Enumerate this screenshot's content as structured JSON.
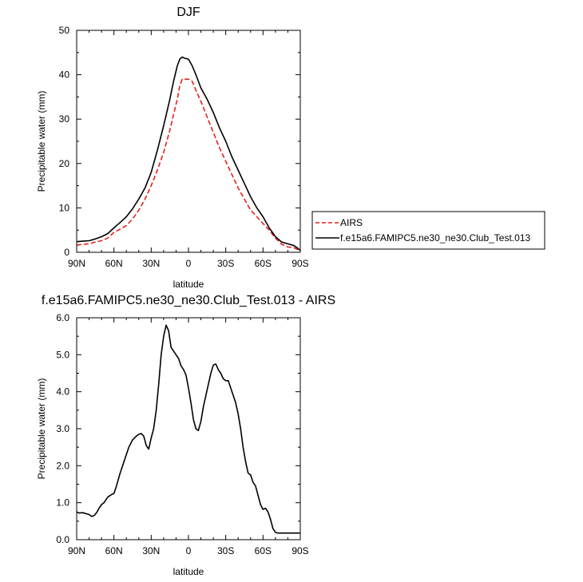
{
  "chart_data": [
    {
      "type": "line",
      "title": "DJF",
      "xlabel": "latitude",
      "ylabel": "Precipitable water (mm)",
      "xlim": [
        -90,
        90
      ],
      "ylim": [
        0,
        50
      ],
      "x_ticks": [
        {
          "value": -90,
          "label": "90N"
        },
        {
          "value": -60,
          "label": "60N"
        },
        {
          "value": -30,
          "label": "30N"
        },
        {
          "value": 0,
          "label": "0"
        },
        {
          "value": 30,
          "label": "30S"
        },
        {
          "value": 60,
          "label": "60S"
        },
        {
          "value": 90,
          "label": "90S"
        }
      ],
      "y_ticks": [
        {
          "value": 0,
          "label": "0"
        },
        {
          "value": 10,
          "label": "10"
        },
        {
          "value": 20,
          "label": "20"
        },
        {
          "value": 30,
          "label": "30"
        },
        {
          "value": 40,
          "label": "40"
        },
        {
          "value": 50,
          "label": "50"
        }
      ],
      "grid": false,
      "legend_position": "right",
      "series": [
        {
          "name": "AIRS",
          "color": "#e8201c",
          "dash": "dashed",
          "x": [
            -90,
            -85,
            -80,
            -75,
            -70,
            -65,
            -60,
            -55,
            -50,
            -45,
            -40,
            -35,
            -30,
            -25,
            -20,
            -15,
            -12,
            -9,
            -7,
            -5,
            -3,
            0,
            3,
            6,
            10,
            15,
            20,
            25,
            30,
            35,
            40,
            45,
            50,
            55,
            60,
            65,
            70,
            75,
            80,
            85,
            88,
            90
          ],
          "y": [
            1.6,
            1.8,
            1.9,
            2.3,
            2.6,
            3.2,
            4.5,
            5.2,
            6.0,
            7.5,
            9.5,
            12.0,
            15.0,
            18.5,
            22.5,
            27.5,
            31.0,
            34.5,
            37.5,
            39.0,
            39.0,
            39.0,
            38.5,
            36.5,
            34.0,
            30.5,
            27.0,
            23.5,
            20.5,
            17.5,
            14.5,
            12.0,
            9.5,
            8.0,
            6.5,
            5.0,
            3.2,
            1.8,
            1.2,
            1.0,
            0.6,
            0.4
          ]
        },
        {
          "name": "f.e15a6.FAMIPC5.ne30_ne30.Club_Test.013",
          "color": "#000000",
          "dash": "solid",
          "x": [
            -90,
            -85,
            -80,
            -75,
            -70,
            -65,
            -60,
            -55,
            -50,
            -45,
            -40,
            -35,
            -30,
            -25,
            -20,
            -15,
            -12,
            -9,
            -7,
            -5,
            -3,
            0,
            3,
            6,
            10,
            15,
            20,
            25,
            30,
            35,
            40,
            45,
            50,
            55,
            60,
            65,
            70,
            75,
            80,
            85,
            88,
            90
          ],
          "y": [
            2.4,
            2.5,
            2.6,
            3.0,
            3.5,
            4.2,
            5.5,
            6.7,
            8.0,
            9.8,
            12.0,
            14.5,
            18.0,
            23.0,
            28.5,
            34.5,
            38.5,
            42.0,
            43.5,
            44.0,
            43.7,
            43.5,
            42.0,
            40.0,
            37.0,
            34.5,
            31.5,
            28.0,
            25.0,
            21.5,
            18.5,
            15.5,
            12.5,
            10.0,
            8.0,
            5.5,
            3.5,
            2.3,
            1.9,
            1.5,
            0.9,
            0.4
          ]
        }
      ]
    },
    {
      "type": "line",
      "title": "f.e15a6.FAMIPC5.ne30_ne30.Club_Test.013 - AIRS",
      "xlabel": "latitude",
      "ylabel": "Precipitable water (mm)",
      "xlim": [
        -90,
        90
      ],
      "ylim": [
        0,
        6
      ],
      "x_ticks": [
        {
          "value": -90,
          "label": "90N"
        },
        {
          "value": -60,
          "label": "60N"
        },
        {
          "value": -30,
          "label": "30N"
        },
        {
          "value": 0,
          "label": "0"
        },
        {
          "value": 30,
          "label": "30S"
        },
        {
          "value": 60,
          "label": "60S"
        },
        {
          "value": 90,
          "label": "90S"
        }
      ],
      "y_ticks": [
        {
          "value": 0,
          "label": "0.0"
        },
        {
          "value": 1,
          "label": "1.0"
        },
        {
          "value": 2,
          "label": "2.0"
        },
        {
          "value": 3,
          "label": "3.0"
        },
        {
          "value": 4,
          "label": "4.0"
        },
        {
          "value": 5,
          "label": "5.0"
        },
        {
          "value": 6,
          "label": "6.0"
        }
      ],
      "grid": false,
      "series": [
        {
          "color": "#000000",
          "dash": "solid",
          "x": [
            -90,
            -88,
            -85,
            -82,
            -80,
            -78,
            -76,
            -74,
            -72,
            -70,
            -68,
            -65,
            -62,
            -60,
            -58,
            -55,
            -52,
            -50,
            -48,
            -45,
            -42,
            -40,
            -38,
            -36,
            -34,
            -32,
            -30,
            -28,
            -26,
            -24,
            -22,
            -20,
            -18,
            -16,
            -14,
            -12,
            -10,
            -8,
            -6,
            -4,
            -2,
            0,
            2,
            4,
            6,
            8,
            10,
            12,
            14,
            16,
            18,
            20,
            22,
            24,
            26,
            28,
            30,
            32,
            34,
            36,
            38,
            40,
            42,
            44,
            46,
            48,
            50,
            52,
            54,
            56,
            58,
            60,
            62,
            64,
            66,
            68,
            70,
            72,
            74,
            76,
            78,
            80,
            82,
            84,
            86,
            88,
            90
          ],
          "y": [
            0.75,
            0.72,
            0.73,
            0.7,
            0.68,
            0.63,
            0.65,
            0.73,
            0.85,
            0.95,
            1.0,
            1.15,
            1.22,
            1.25,
            1.45,
            1.8,
            2.1,
            2.3,
            2.5,
            2.7,
            2.8,
            2.85,
            2.87,
            2.8,
            2.55,
            2.45,
            2.75,
            3.0,
            3.5,
            4.2,
            5.0,
            5.5,
            5.8,
            5.65,
            5.2,
            5.1,
            5.0,
            4.9,
            4.7,
            4.6,
            4.45,
            4.1,
            3.7,
            3.25,
            3.0,
            2.95,
            3.2,
            3.6,
            3.9,
            4.2,
            4.5,
            4.72,
            4.75,
            4.6,
            4.5,
            4.35,
            4.3,
            4.3,
            4.1,
            3.9,
            3.7,
            3.4,
            3.0,
            2.5,
            2.1,
            1.8,
            1.75,
            1.55,
            1.45,
            1.2,
            0.95,
            0.82,
            0.85,
            0.75,
            0.55,
            0.3,
            0.2,
            0.18,
            0.18,
            0.18,
            0.18,
            0.18,
            0.18,
            0.18,
            0.18,
            0.18,
            0.18
          ]
        }
      ]
    }
  ]
}
